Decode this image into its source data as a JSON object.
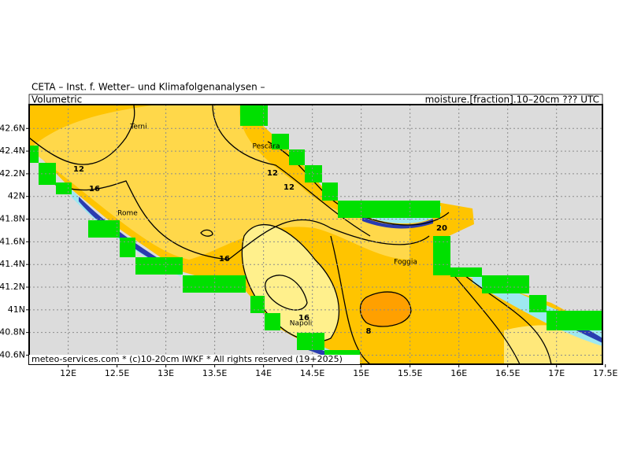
{
  "header": {
    "source": "CETA – Inst. f. Wetter– und Klimafolgenanalysen –",
    "left": "Volumetric",
    "right": "moisture.[fraction].10–20cm ??? UTC"
  },
  "footer": "meteo-services.com * (c)10-20cm IWKF * All rights reserved (19+2025)",
  "lon_range": [
    11.6,
    17.47
  ],
  "lat_range": [
    40.52,
    42.81
  ],
  "lon_ticks": [
    {
      "value": 12,
      "label": "12E"
    },
    {
      "value": 12.5,
      "label": "12.5E"
    },
    {
      "value": 13,
      "label": "13E"
    },
    {
      "value": 13.5,
      "label": "13.5E"
    },
    {
      "value": 14,
      "label": "14E"
    },
    {
      "value": 14.5,
      "label": "14.5E"
    },
    {
      "value": 15,
      "label": "15E"
    },
    {
      "value": 15.5,
      "label": "15.5E"
    },
    {
      "value": 16,
      "label": "16E"
    },
    {
      "value": 16.5,
      "label": "16.5E"
    },
    {
      "value": 17,
      "label": "17E"
    },
    {
      "value": 17.5,
      "label": "17.5E"
    }
  ],
  "lat_ticks": [
    {
      "value": 40.6,
      "label": "40.6N"
    },
    {
      "value": 40.8,
      "label": "40.8N"
    },
    {
      "value": 41,
      "label": "41N"
    },
    {
      "value": 41.2,
      "label": "41.2N"
    },
    {
      "value": 41.4,
      "label": "41.4N"
    },
    {
      "value": 41.6,
      "label": "41.6N"
    },
    {
      "value": 41.8,
      "label": "41.8N"
    },
    {
      "value": 42,
      "label": "42N"
    },
    {
      "value": 42.2,
      "label": "42.2N"
    },
    {
      "value": 42.4,
      "label": "42.4N"
    },
    {
      "value": 42.6,
      "label": "42.6N"
    }
  ],
  "cities": [
    "Terni",
    "Pescara",
    "Rome",
    "Foggia",
    "Napoli"
  ],
  "contour_labels": [
    12,
    16,
    12,
    12,
    16,
    20,
    16,
    8
  ]
}
